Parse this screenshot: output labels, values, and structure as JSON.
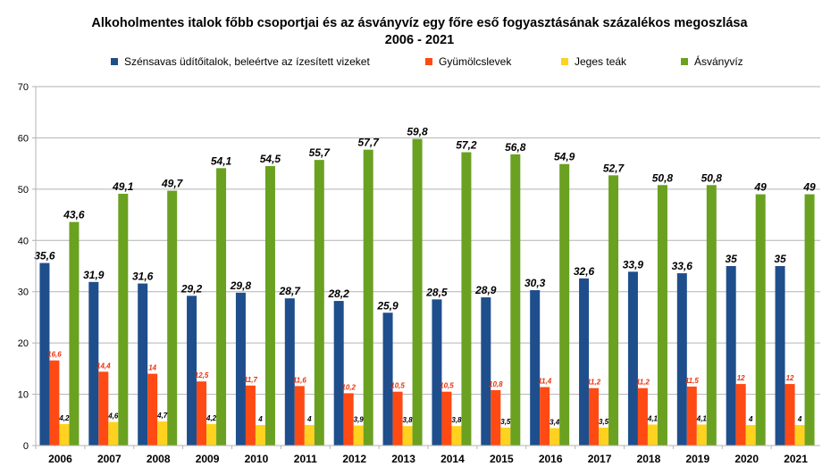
{
  "title_line1": "Alkoholmentes italok főbb csoportjai és az ásványvíz egy főre eső fogyasztásának százalékos megoszlása",
  "title_line2": "2006 - 2021",
  "chart_data": {
    "type": "bar",
    "categories": [
      "2006",
      "2007",
      "2008",
      "2009",
      "2010",
      "2011",
      "2012",
      "2013",
      "2014",
      "2015",
      "2016",
      "2017",
      "2018",
      "2019",
      "2020",
      "2021"
    ],
    "ylim": [
      0,
      70
    ],
    "yticks": [
      0,
      10,
      20,
      30,
      40,
      50,
      60,
      70
    ],
    "grid": true,
    "legend_position": "top",
    "series": [
      {
        "name": "Szénsavas üdítőitalok, beleértve az ízesített vizeket",
        "color": "#1f4e8c",
        "values": [
          35.6,
          31.9,
          31.6,
          29.2,
          29.8,
          28.7,
          28.2,
          25.9,
          28.5,
          28.9,
          30.3,
          32.6,
          33.9,
          33.6,
          35,
          35
        ],
        "labels": [
          "35,6",
          "31,9",
          "31,6",
          "29,2",
          "29,8",
          "28,7",
          "28,2",
          "25,9",
          "28,5",
          "28,9",
          "30,3",
          "32,6",
          "33,9",
          "33,6",
          "35",
          "35"
        ]
      },
      {
        "name": "Gyümölcslevek",
        "color": "#ff4a14",
        "values": [
          16.6,
          14.4,
          14,
          12.5,
          11.7,
          11.6,
          10.2,
          10.5,
          10.5,
          10.8,
          11.4,
          11.2,
          11.2,
          11.5,
          12,
          12
        ],
        "labels": [
          "16,6",
          "14,4",
          "14",
          "12,5",
          "11,7",
          "11,6",
          "10,2",
          "10,5",
          "10,5",
          "10,8",
          "11,4",
          "11,2",
          "11,2",
          "11,5",
          "12",
          "12"
        ]
      },
      {
        "name": "Jeges teák",
        "color": "#ffd21f",
        "values": [
          4.2,
          4.6,
          4.7,
          4.2,
          4,
          4,
          3.9,
          3.8,
          3.8,
          3.5,
          3.4,
          3.5,
          4.1,
          4.1,
          4,
          4
        ],
        "labels": [
          "4,2",
          "4,6",
          "4,7",
          "4,2",
          "4",
          "4",
          "3,9",
          "3,8",
          "3,8",
          "3,5",
          "3,4",
          "3,5",
          "4,1",
          "4,1",
          "4",
          "4"
        ]
      },
      {
        "name": "Ásványvíz",
        "color": "#6aa121",
        "values": [
          43.6,
          49.1,
          49.7,
          54.1,
          54.5,
          55.7,
          57.7,
          59.8,
          57.2,
          56.8,
          54.9,
          52.7,
          50.8,
          50.8,
          49,
          49
        ],
        "labels": [
          "43,6",
          "49,1",
          "49,7",
          "54,1",
          "54,5",
          "55,7",
          "57,7",
          "59,8",
          "57,2",
          "56,8",
          "54,9",
          "52,7",
          "50,8",
          "50,8",
          "49",
          "49"
        ]
      }
    ]
  }
}
